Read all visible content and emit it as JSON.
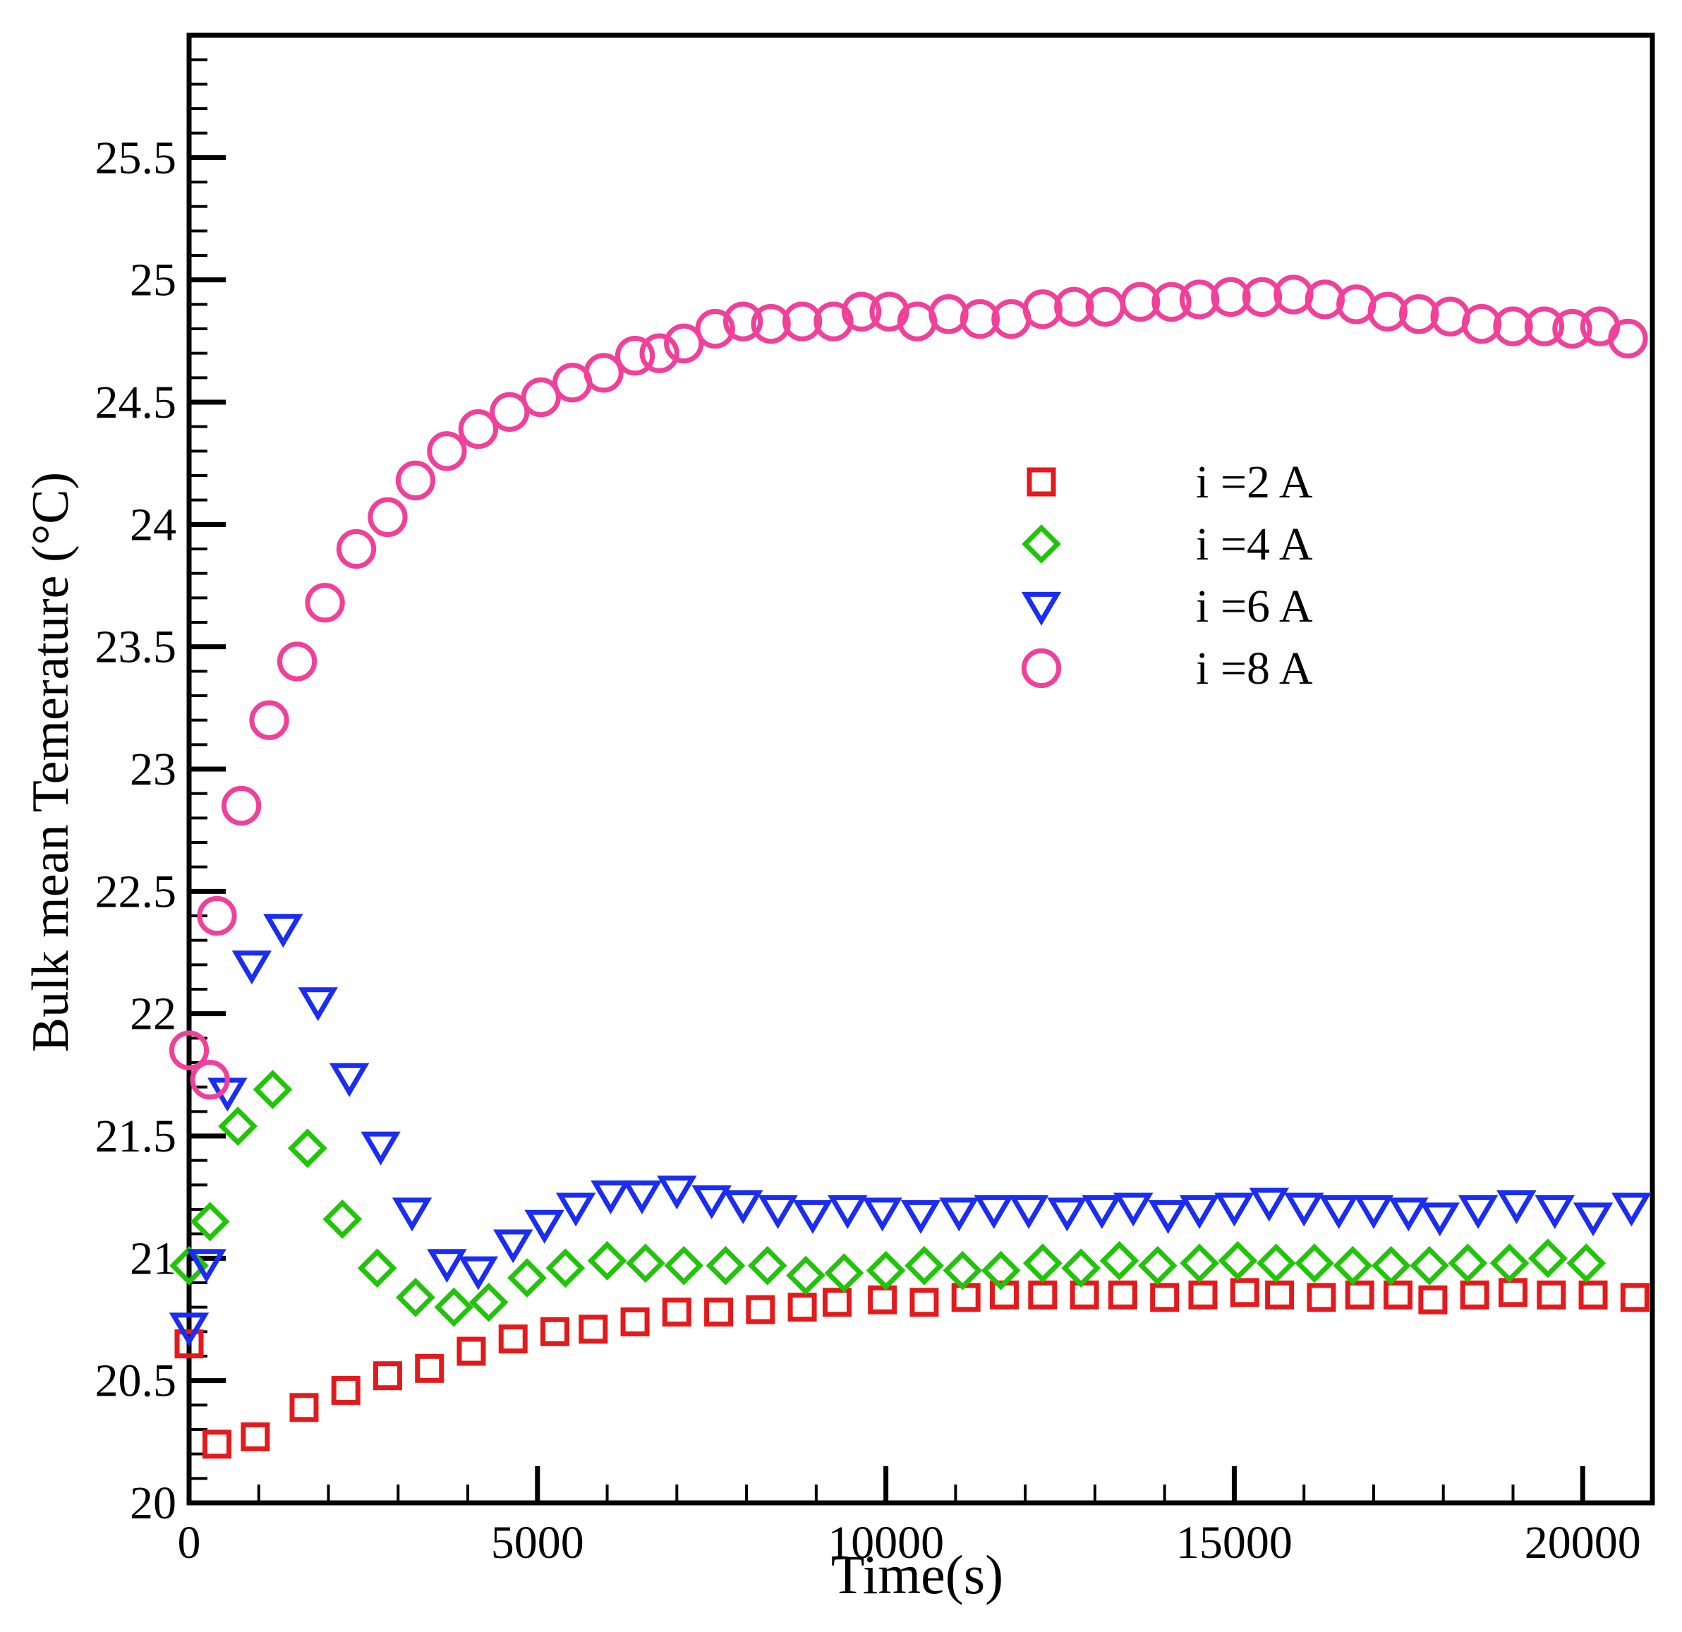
{
  "chart_data": {
    "type": "scatter",
    "title": "",
    "xlabel": "Time(s)",
    "ylabel": "Bulk mean Temerature (°C)",
    "xlim": [
      0,
      21000
    ],
    "ylim": [
      20,
      26
    ],
    "xticks": [
      0,
      5000,
      10000,
      15000,
      20000
    ],
    "xtick_labels": [
      "0",
      "5000",
      "10000",
      "15000",
      "20000"
    ],
    "yticks": [
      20,
      20.5,
      21,
      21.5,
      22,
      22.5,
      23,
      23.5,
      24,
      24.5,
      25,
      25.5
    ],
    "ytick_labels": [
      "20",
      "20.5",
      "21",
      "21.5",
      "22",
      "22.5",
      "23",
      "23.5",
      "24",
      "24.5",
      "25",
      "25.5"
    ],
    "grid": false,
    "legend_position": "upper-right-center",
    "series": [
      {
        "name": "i =2 A",
        "marker": "square",
        "color": "#e31a1c",
        "x": [
          0,
          400,
          950,
          1650,
          2250,
          2850,
          3450,
          4050,
          4650,
          5250,
          5800,
          6400,
          7000,
          7600,
          8200,
          8800,
          9300,
          9950,
          10550,
          11150,
          11700,
          12250,
          12850,
          13400,
          14000,
          14550,
          15150,
          15650,
          16250,
          16800,
          17350,
          17850,
          18450,
          19000,
          19550,
          20150,
          20750
        ],
        "y": [
          20.65,
          20.24,
          20.27,
          20.39,
          20.46,
          20.52,
          20.55,
          20.62,
          20.67,
          20.7,
          20.71,
          20.74,
          20.78,
          20.78,
          20.79,
          20.8,
          20.82,
          20.83,
          20.82,
          20.84,
          20.85,
          20.85,
          20.85,
          20.85,
          20.84,
          20.85,
          20.86,
          20.85,
          20.84,
          20.85,
          20.85,
          20.83,
          20.85,
          20.86,
          20.85,
          20.85,
          20.84
        ]
      },
      {
        "name": "i =4 A",
        "marker": "diamond",
        "color": "#22c40a",
        "x": [
          0,
          300,
          700,
          1200,
          1700,
          2200,
          2700,
          3250,
          3800,
          4300,
          4850,
          5400,
          6000,
          6550,
          7100,
          7700,
          8300,
          8850,
          9400,
          10000,
          10550,
          11100,
          11650,
          12250,
          12800,
          13350,
          13900,
          14500,
          15050,
          15600,
          16150,
          16700,
          17250,
          17800,
          18350,
          18950,
          19500,
          20050
        ],
        "y": [
          20.97,
          21.15,
          21.54,
          21.69,
          21.45,
          21.16,
          20.96,
          20.84,
          20.8,
          20.82,
          20.92,
          20.96,
          20.99,
          20.98,
          20.97,
          20.97,
          20.97,
          20.93,
          20.94,
          20.95,
          20.97,
          20.95,
          20.95,
          20.98,
          20.96,
          20.99,
          20.97,
          20.98,
          20.99,
          20.98,
          20.98,
          20.97,
          20.97,
          20.97,
          20.98,
          20.98,
          21.0,
          20.98
        ]
      },
      {
        "name": "i =6 A",
        "marker": "triangle-down",
        "color": "#1a2df0",
        "x": [
          0,
          250,
          550,
          900,
          1350,
          1850,
          2300,
          2750,
          3200,
          3700,
          4150,
          4650,
          5100,
          5550,
          6050,
          6500,
          7000,
          7500,
          7950,
          8450,
          8950,
          9450,
          9950,
          10500,
          11050,
          11550,
          12050,
          12600,
          13100,
          13550,
          14050,
          14500,
          15000,
          15500,
          16000,
          16500,
          17000,
          17500,
          17950,
          18500,
          19050,
          19600,
          20150,
          20700
        ],
        "y": [
          20.72,
          20.98,
          21.68,
          22.2,
          22.35,
          22.05,
          21.74,
          21.46,
          21.19,
          20.98,
          20.95,
          21.06,
          21.14,
          21.21,
          21.26,
          21.26,
          21.28,
          21.24,
          21.22,
          21.2,
          21.18,
          21.2,
          21.19,
          21.18,
          21.19,
          21.2,
          21.2,
          21.19,
          21.2,
          21.21,
          21.18,
          21.2,
          21.21,
          21.23,
          21.21,
          21.2,
          21.2,
          21.19,
          21.17,
          21.2,
          21.22,
          21.2,
          21.17,
          21.21
        ]
      },
      {
        "name": "i =8 A",
        "marker": "circle",
        "color": "#f0409a",
        "x": [
          0,
          300,
          400,
          750,
          1150,
          1550,
          1950,
          2400,
          2850,
          3250,
          3700,
          4150,
          4600,
          5050,
          5500,
          5950,
          6400,
          6750,
          7100,
          7550,
          7950,
          8350,
          8800,
          9250,
          9650,
          10050,
          10450,
          10900,
          11350,
          11800,
          12250,
          12700,
          13150,
          13650,
          14100,
          14500,
          14950,
          15400,
          15850,
          16300,
          16750,
          17200,
          17650,
          18100,
          18550,
          19000,
          19450,
          19850,
          20250,
          20650
        ],
        "y": [
          21.85,
          21.73,
          22.4,
          22.85,
          23.2,
          23.44,
          23.68,
          23.9,
          24.03,
          24.18,
          24.3,
          24.39,
          24.46,
          24.52,
          24.58,
          24.62,
          24.69,
          24.7,
          24.74,
          24.8,
          24.83,
          24.82,
          24.83,
          24.83,
          24.87,
          24.87,
          24.83,
          24.86,
          24.84,
          24.84,
          24.88,
          24.89,
          24.89,
          24.91,
          24.91,
          24.92,
          24.93,
          24.93,
          24.94,
          24.92,
          24.9,
          24.87,
          24.86,
          24.85,
          24.82,
          24.81,
          24.81,
          24.8,
          24.81,
          24.76
        ]
      }
    ]
  }
}
